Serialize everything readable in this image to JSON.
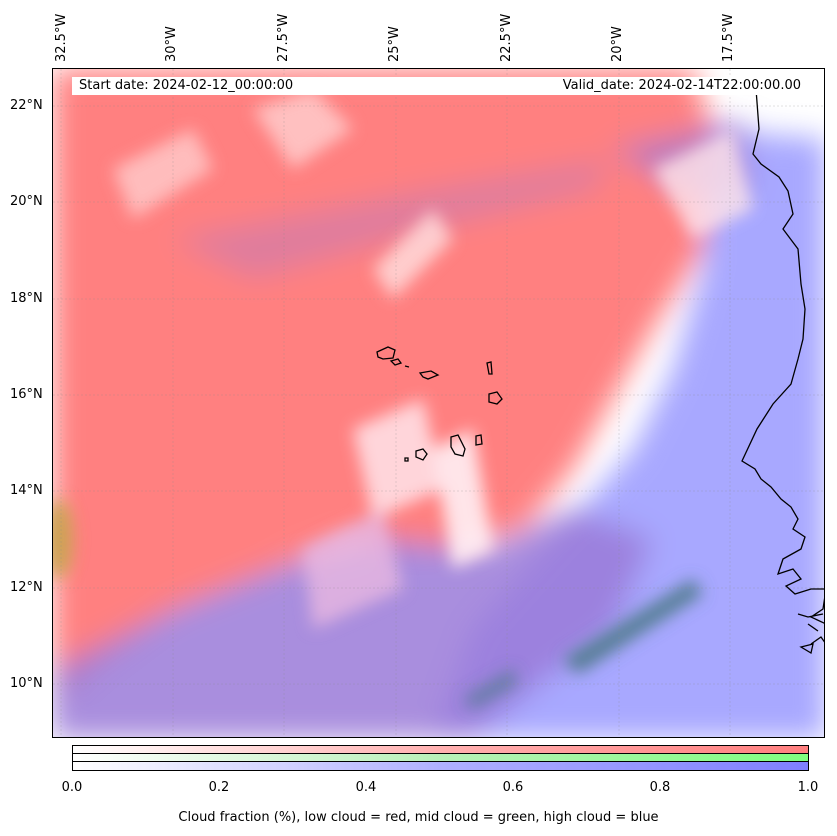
{
  "map": {
    "longitude_labels": [
      "32.5°W",
      "30°W",
      "27.5°W",
      "25°W",
      "22.5°W",
      "20°W",
      "17.5°W"
    ],
    "latitude_labels": [
      "22°N",
      "20°N",
      "18°N",
      "16°N",
      "14°N",
      "12°N",
      "10°N"
    ],
    "start_date": "Start date: 2024-02-12_00:00:00",
    "valid_date": "Valid_date: 2024-02-14T22:00:00.00",
    "extent": {
      "lon_min": -32.6,
      "lon_max": -15.3,
      "lat_min": 8.9,
      "lat_max": 22.8
    },
    "colors": {
      "low_cloud": "#ff7f7f",
      "mid_cloud": "#7fff7f",
      "high_cloud": "#7f7fff",
      "land": "#000000"
    }
  },
  "colorbar": {
    "ticks": [
      "0.0",
      "0.2",
      "0.4",
      "0.6",
      "0.8",
      "1.0"
    ],
    "caption": "Cloud fraction (%), low cloud = red, mid cloud = green, high cloud = blue"
  }
}
